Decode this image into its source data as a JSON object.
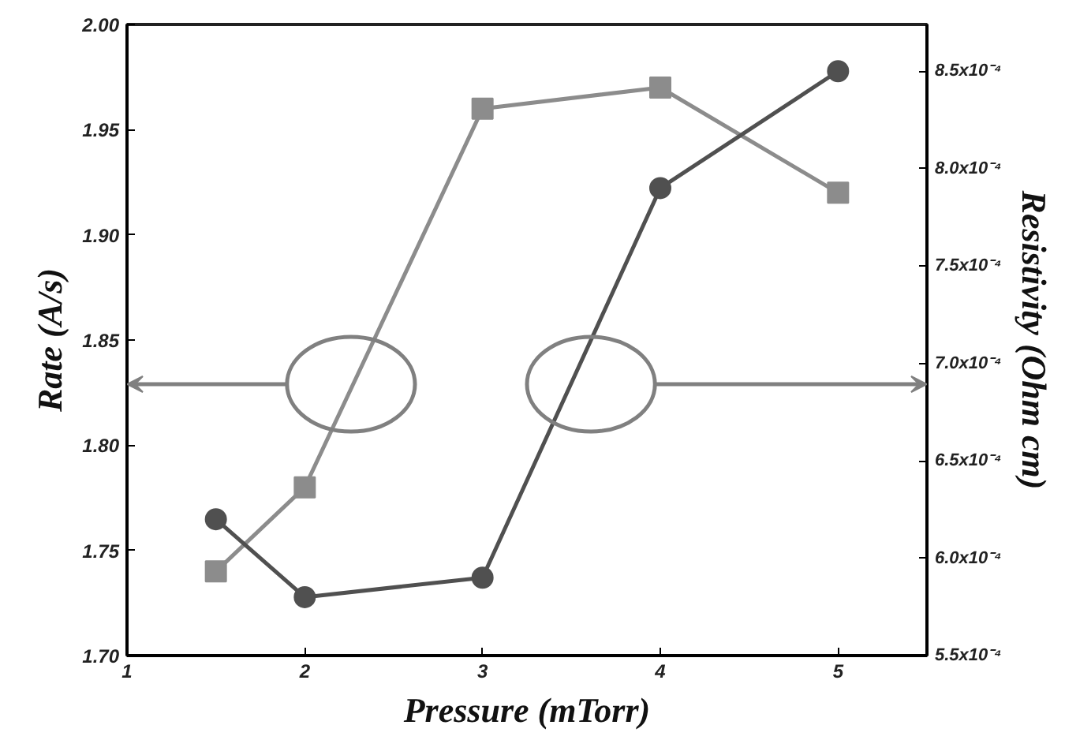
{
  "chart_data": {
    "type": "line",
    "xlabel": "Pressure (mTorr)",
    "ylabel": "Rate (A/s)",
    "y2label": "Resistivity (Ohm cm)",
    "x": [
      1.5,
      2,
      3,
      4,
      5
    ],
    "series": [
      {
        "color": "#8c8c8c",
        "marker": "square",
        "values": [
          1.74,
          1.78,
          1.96,
          1.97,
          1.92
        ]
      },
      {
        "color": "#505050",
        "marker": "circle",
        "axis": "y2",
        "values": [
          0.00062,
          0.00058,
          0.00059,
          0.00079,
          0.00085
        ]
      }
    ],
    "xlim": [
      1,
      5.5
    ],
    "xticks": [
      1,
      2,
      3,
      4,
      5
    ],
    "ylim": [
      1.7,
      2.0
    ],
    "yticks": [
      {
        "value": 1.7,
        "label": "1.70"
      },
      {
        "value": 1.75,
        "label": "1.75"
      },
      {
        "value": 1.8,
        "label": "1.80"
      },
      {
        "value": 1.85,
        "label": "1.85"
      },
      {
        "value": 1.9,
        "label": "1.90"
      },
      {
        "value": 1.95,
        "label": "1.95"
      },
      {
        "value": 2.0,
        "label": "2.00"
      }
    ],
    "y2lim": [
      0.00055,
      0.000874
    ],
    "y2ticks": [
      {
        "value": 0.00055,
        "label": "5.5x10⁻⁴"
      },
      {
        "value": 0.0006,
        "label": "6.0x10⁻⁴"
      },
      {
        "value": 0.00065,
        "label": "6.5x10⁻⁴"
      },
      {
        "value": 0.0007,
        "label": "7.0x10⁻⁴"
      },
      {
        "value": 0.00075,
        "label": "7.5x10⁻⁴"
      },
      {
        "value": 0.0008,
        "label": "8.0x10⁻⁴"
      },
      {
        "value": 0.00085,
        "label": "8.5x10⁻⁴"
      }
    ],
    "grid": false
  }
}
